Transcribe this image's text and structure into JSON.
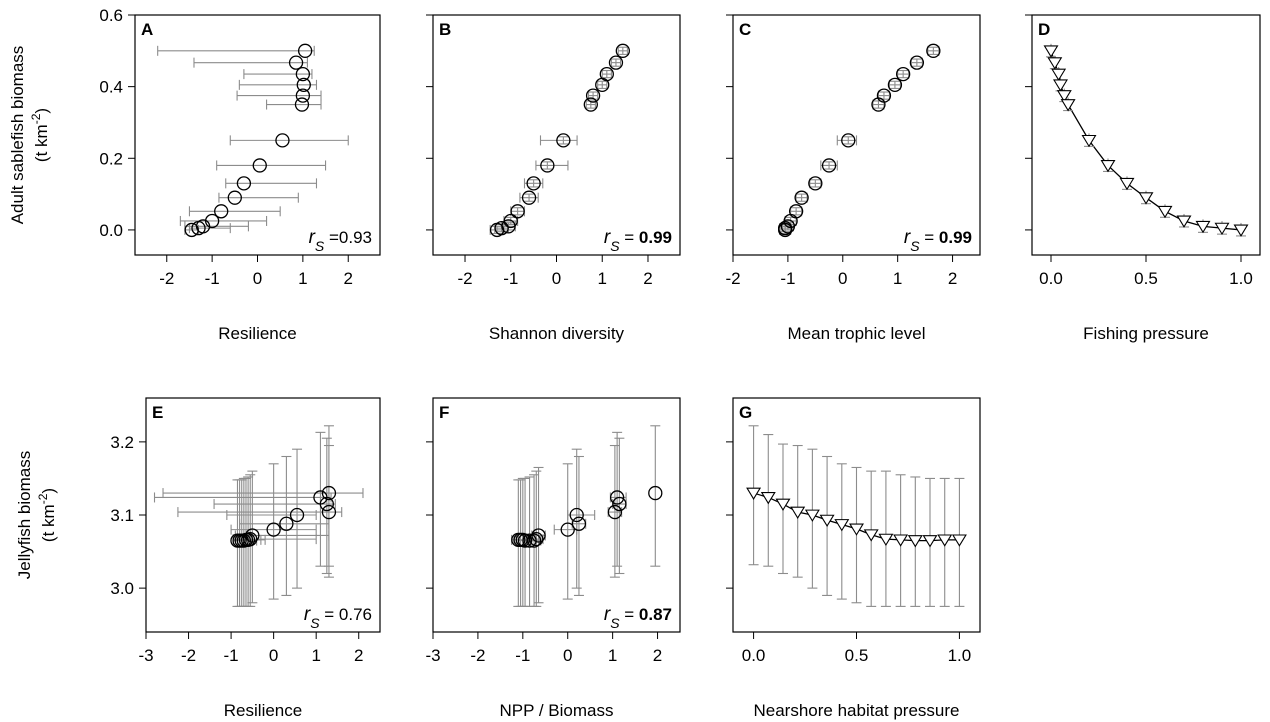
{
  "chart_data": [
    {
      "id": "A",
      "type": "scatter",
      "panel_label": "A",
      "xlabel": "Resilience",
      "ylabel": "Adult sablefish biomass",
      "ylabel_unit": "(t km",
      "xlim": [
        -2.7,
        2.7
      ],
      "ylim": [
        -0.07,
        0.6
      ],
      "xticks": [
        -2,
        -1,
        0,
        1,
        2
      ],
      "xtick_labels": [
        "-2",
        "-1",
        "0",
        "1",
        "2"
      ],
      "yticks": [
        0.0,
        0.2,
        0.4,
        0.6
      ],
      "ytick_labels": [
        "0.0",
        "0.2",
        "0.4",
        "0.6"
      ],
      "marker": "circle",
      "xerr_bars": true,
      "yerr_bars": false,
      "points": [
        {
          "x": 1.05,
          "y": 0.5,
          "xlo": -2.2,
          "xhi": 1.25
        },
        {
          "x": 0.85,
          "y": 0.467,
          "xlo": -1.4,
          "xhi": 1.1
        },
        {
          "x": 1.0,
          "y": 0.435,
          "xlo": -0.3,
          "xhi": 1.2
        },
        {
          "x": 1.02,
          "y": 0.405,
          "xlo": -0.4,
          "xhi": 1.3
        },
        {
          "x": 1.0,
          "y": 0.375,
          "xlo": -0.45,
          "xhi": 1.4
        },
        {
          "x": 0.98,
          "y": 0.35,
          "xlo": 0.2,
          "xhi": 1.4
        },
        {
          "x": 0.55,
          "y": 0.25,
          "xlo": -0.6,
          "xhi": 2.0
        },
        {
          "x": 0.05,
          "y": 0.18,
          "xlo": -0.9,
          "xhi": 1.5
        },
        {
          "x": -0.3,
          "y": 0.13,
          "xlo": -0.7,
          "xhi": 1.3
        },
        {
          "x": -0.5,
          "y": 0.09,
          "xlo": -0.85,
          "xhi": 0.9
        },
        {
          "x": -0.8,
          "y": 0.052,
          "xlo": -1.5,
          "xhi": 0.5
        },
        {
          "x": -1.0,
          "y": 0.025,
          "xlo": -1.7,
          "xhi": 0.2
        },
        {
          "x": -1.2,
          "y": 0.01,
          "xlo": -1.6,
          "xhi": -0.2
        },
        {
          "x": -1.3,
          "y": 0.005,
          "xlo": -1.5,
          "xhi": -0.6
        },
        {
          "x": -1.45,
          "y": 0.0,
          "xlo": -1.6,
          "xhi": -1.3
        }
      ],
      "annotation": {
        "prefix": "r",
        "sub": "S",
        "text": " =0.93",
        "bold": false
      }
    },
    {
      "id": "B",
      "type": "scatter",
      "panel_label": "B",
      "xlabel": "Shannon diversity",
      "xlim": [
        -2.7,
        2.7
      ],
      "ylim": [
        -0.07,
        0.6
      ],
      "xticks": [
        -2,
        -1,
        0,
        1,
        2
      ],
      "xtick_labels": [
        "-2",
        "-1",
        "0",
        "1",
        "2"
      ],
      "marker": "circle",
      "xerr_bars": true,
      "yerr_bars": true,
      "points": [
        {
          "x": 1.45,
          "y": 0.5,
          "xlo": 1.35,
          "xhi": 1.55,
          "ylo": 0.49,
          "yhi": 0.51
        },
        {
          "x": 1.3,
          "y": 0.467,
          "xlo": 1.2,
          "xhi": 1.4,
          "ylo": 0.457,
          "yhi": 0.477
        },
        {
          "x": 1.1,
          "y": 0.435,
          "xlo": 1.0,
          "xhi": 1.2,
          "ylo": 0.425,
          "yhi": 0.445
        },
        {
          "x": 1.0,
          "y": 0.405,
          "xlo": 0.9,
          "xhi": 1.1,
          "ylo": 0.395,
          "yhi": 0.415
        },
        {
          "x": 0.8,
          "y": 0.375,
          "xlo": 0.7,
          "xhi": 0.9,
          "ylo": 0.365,
          "yhi": 0.385
        },
        {
          "x": 0.75,
          "y": 0.35,
          "xlo": 0.65,
          "xhi": 0.85,
          "ylo": 0.34,
          "yhi": 0.36
        },
        {
          "x": 0.15,
          "y": 0.25,
          "xlo": -0.35,
          "xhi": 0.45,
          "ylo": 0.24,
          "yhi": 0.26
        },
        {
          "x": -0.2,
          "y": 0.18,
          "xlo": -0.45,
          "xhi": 0.25,
          "ylo": 0.17,
          "yhi": 0.19
        },
        {
          "x": -0.5,
          "y": 0.13,
          "xlo": -0.7,
          "xhi": -0.3,
          "ylo": 0.12,
          "yhi": 0.14
        },
        {
          "x": -0.6,
          "y": 0.09,
          "xlo": -0.8,
          "xhi": -0.4,
          "ylo": 0.08,
          "yhi": 0.1
        },
        {
          "x": -0.85,
          "y": 0.052,
          "xlo": -1.0,
          "xhi": -0.7,
          "ylo": 0.042,
          "yhi": 0.062
        },
        {
          "x": -1.0,
          "y": 0.025,
          "xlo": -1.15,
          "xhi": -0.85,
          "ylo": 0.015,
          "yhi": 0.035
        },
        {
          "x": -1.05,
          "y": 0.01,
          "xlo": -1.2,
          "xhi": -0.9,
          "ylo": 0.0,
          "yhi": 0.02
        },
        {
          "x": -1.2,
          "y": 0.005,
          "xlo": -1.35,
          "xhi": -1.05,
          "ylo": -0.005,
          "yhi": 0.015
        },
        {
          "x": -1.3,
          "y": 0.0,
          "xlo": -1.45,
          "xhi": -1.15,
          "ylo": -0.01,
          "yhi": 0.01
        }
      ],
      "annotation": {
        "prefix": "r",
        "sub": "S",
        "text": " = ",
        "value": "0.99",
        "bold": true
      }
    },
    {
      "id": "C",
      "type": "scatter",
      "panel_label": "C",
      "xlabel": "Mean trophic level",
      "xlim": [
        -2.0,
        2.5
      ],
      "ylim": [
        -0.07,
        0.6
      ],
      "xticks": [
        -2,
        -1,
        0,
        1,
        2
      ],
      "xtick_labels": [
        "-2",
        "-1",
        "0",
        "1",
        "2"
      ],
      "marker": "circle",
      "xerr_bars": true,
      "yerr_bars": true,
      "points": [
        {
          "x": 1.65,
          "y": 0.5,
          "xlo": 1.55,
          "xhi": 1.75,
          "ylo": 0.49,
          "yhi": 0.51
        },
        {
          "x": 1.35,
          "y": 0.467,
          "xlo": 1.25,
          "xhi": 1.45,
          "ylo": 0.457,
          "yhi": 0.477
        },
        {
          "x": 1.1,
          "y": 0.435,
          "xlo": 1.0,
          "xhi": 1.2,
          "ylo": 0.425,
          "yhi": 0.445
        },
        {
          "x": 0.95,
          "y": 0.405,
          "xlo": 0.85,
          "xhi": 1.05,
          "ylo": 0.395,
          "yhi": 0.415
        },
        {
          "x": 0.75,
          "y": 0.375,
          "xlo": 0.65,
          "xhi": 0.85,
          "ylo": 0.365,
          "yhi": 0.385
        },
        {
          "x": 0.65,
          "y": 0.35,
          "xlo": 0.55,
          "xhi": 0.75,
          "ylo": 0.34,
          "yhi": 0.36
        },
        {
          "x": 0.1,
          "y": 0.25,
          "xlo": -0.1,
          "xhi": 0.25,
          "ylo": 0.24,
          "yhi": 0.26
        },
        {
          "x": -0.25,
          "y": 0.18,
          "xlo": -0.4,
          "xhi": -0.1,
          "ylo": 0.17,
          "yhi": 0.19
        },
        {
          "x": -0.5,
          "y": 0.13,
          "xlo": -0.6,
          "xhi": -0.4,
          "ylo": 0.12,
          "yhi": 0.14
        },
        {
          "x": -0.75,
          "y": 0.09,
          "xlo": -0.85,
          "xhi": -0.65,
          "ylo": 0.08,
          "yhi": 0.1
        },
        {
          "x": -0.85,
          "y": 0.052,
          "xlo": -0.95,
          "xhi": -0.75,
          "ylo": 0.042,
          "yhi": 0.062
        },
        {
          "x": -0.95,
          "y": 0.025,
          "xlo": -1.05,
          "xhi": -0.85,
          "ylo": 0.015,
          "yhi": 0.035
        },
        {
          "x": -1.0,
          "y": 0.01,
          "xlo": -1.1,
          "xhi": -0.9,
          "ylo": 0.0,
          "yhi": 0.02
        },
        {
          "x": -1.05,
          "y": 0.005,
          "xlo": -1.15,
          "xhi": -0.95,
          "ylo": -0.005,
          "yhi": 0.015
        },
        {
          "x": -1.05,
          "y": 0.0,
          "xlo": -1.15,
          "xhi": -0.95,
          "ylo": -0.01,
          "yhi": 0.01
        }
      ],
      "annotation": {
        "prefix": "r",
        "sub": "S",
        "text": " = ",
        "value": "0.99",
        "bold": true
      }
    },
    {
      "id": "D",
      "type": "line",
      "panel_label": "D",
      "xlabel": "Fishing pressure",
      "xlim": [
        -0.1,
        1.1
      ],
      "ylim": [
        -0.07,
        0.6
      ],
      "xticks": [
        0.0,
        0.5,
        1.0
      ],
      "xtick_labels": [
        "0.0",
        "0.5",
        "1.0"
      ],
      "marker": "triangle-down",
      "show_line": true,
      "yerr_bars": true,
      "points": [
        {
          "x": 0.0,
          "y": 0.5
        },
        {
          "x": 0.02,
          "y": 0.467
        },
        {
          "x": 0.04,
          "y": 0.435
        },
        {
          "x": 0.05,
          "y": 0.405
        },
        {
          "x": 0.07,
          "y": 0.375
        },
        {
          "x": 0.09,
          "y": 0.35
        },
        {
          "x": 0.2,
          "y": 0.25
        },
        {
          "x": 0.3,
          "y": 0.18
        },
        {
          "x": 0.4,
          "y": 0.13
        },
        {
          "x": 0.5,
          "y": 0.09
        },
        {
          "x": 0.6,
          "y": 0.052
        },
        {
          "x": 0.7,
          "y": 0.025
        },
        {
          "x": 0.8,
          "y": 0.01
        },
        {
          "x": 0.9,
          "y": 0.005
        },
        {
          "x": 1.0,
          "y": 0.0
        }
      ]
    },
    {
      "id": "E",
      "type": "scatter",
      "panel_label": "E",
      "xlabel": "Resilience",
      "ylabel": "Jellyfish biomass",
      "ylabel_unit": "(t km",
      "xlim": [
        -3.0,
        2.5
      ],
      "ylim": [
        2.94,
        3.26
      ],
      "xticks": [
        -3,
        -2,
        -1,
        0,
        1,
        2
      ],
      "xtick_labels": [
        "-3",
        "-2",
        "-1",
        "0",
        "1",
        "2"
      ],
      "yticks": [
        3.0,
        3.1,
        3.2
      ],
      "ytick_labels": [
        "3.0",
        "3.1",
        "3.2"
      ],
      "marker": "circle",
      "xerr_bars": true,
      "yerr_bars": true,
      "points": [
        {
          "x": 1.3,
          "y": 3.13,
          "xlo": -2.6,
          "xhi": 2.1,
          "ylo": 3.03,
          "yhi": 3.222
        },
        {
          "x": 1.1,
          "y": 3.124,
          "xlo": -2.8,
          "xhi": 1.35,
          "ylo": 3.03,
          "yhi": 3.213
        },
        {
          "x": 1.25,
          "y": 3.115,
          "xlo": -1.4,
          "xhi": 1.45,
          "ylo": 3.02,
          "yhi": 3.205
        },
        {
          "x": 1.3,
          "y": 3.104,
          "xlo": -2.25,
          "xhi": 1.6,
          "ylo": 3.015,
          "yhi": 3.195
        },
        {
          "x": 0.55,
          "y": 3.1,
          "xlo": -1.1,
          "xhi": 1.0,
          "ylo": 3.0,
          "yhi": 3.19
        },
        {
          "x": 0.3,
          "y": 3.088,
          "xlo": -0.8,
          "xhi": 1.3,
          "ylo": 2.99,
          "yhi": 3.18
        },
        {
          "x": 0.0,
          "y": 3.08,
          "xlo": -1.0,
          "xhi": 1.0,
          "ylo": 2.985,
          "yhi": 3.17
        },
        {
          "x": -0.5,
          "y": 3.072,
          "xlo": -0.9,
          "xhi": 1.3,
          "ylo": 2.98,
          "yhi": 3.16
        },
        {
          "x": -0.55,
          "y": 3.067,
          "xlo": -0.95,
          "xhi": 1.0,
          "ylo": 2.975,
          "yhi": 3.155
        },
        {
          "x": -0.6,
          "y": 3.066,
          "xlo": -0.95,
          "xhi": -0.2,
          "ylo": 2.975,
          "yhi": 3.152
        },
        {
          "x": -0.65,
          "y": 3.066,
          "xlo": -0.95,
          "xhi": -0.3,
          "ylo": 2.975,
          "yhi": 3.15
        },
        {
          "x": -0.7,
          "y": 3.065,
          "xlo": -0.95,
          "xhi": -0.4,
          "ylo": 2.975,
          "yhi": 3.15
        },
        {
          "x": -0.75,
          "y": 3.065,
          "xlo": -0.95,
          "xhi": -0.5,
          "ylo": 2.975,
          "yhi": 3.148
        },
        {
          "x": -0.8,
          "y": 3.065,
          "xlo": -0.95,
          "xhi": -0.6,
          "ylo": 2.975,
          "yhi": 3.148
        },
        {
          "x": -0.85,
          "y": 3.065,
          "xlo": -0.95,
          "xhi": -0.7,
          "ylo": 2.975,
          "yhi": 3.148
        }
      ],
      "annotation": {
        "prefix": "r",
        "sub": "S",
        "text": " = 0.76",
        "bold": false
      }
    },
    {
      "id": "F",
      "type": "scatter",
      "panel_label": "F",
      "xlabel": "NPP / Biomass",
      "xlim": [
        -3.0,
        2.5
      ],
      "ylim": [
        2.94,
        3.26
      ],
      "xticks": [
        -3,
        -2,
        -1,
        0,
        1,
        2
      ],
      "xtick_labels": [
        "-3",
        "-2",
        "-1",
        "0",
        "1",
        "2"
      ],
      "marker": "circle",
      "xerr_bars": true,
      "yerr_bars": true,
      "points": [
        {
          "x": 1.95,
          "y": 3.13,
          "ylo": 3.03,
          "yhi": 3.222,
          "xlo": 1.95,
          "xhi": 1.95
        },
        {
          "x": 1.1,
          "y": 3.124,
          "ylo": 3.03,
          "yhi": 3.213,
          "xlo": 0.95,
          "xhi": 1.3
        },
        {
          "x": 1.15,
          "y": 3.115,
          "ylo": 3.02,
          "yhi": 3.205,
          "xlo": 1.0,
          "xhi": 1.3
        },
        {
          "x": 1.05,
          "y": 3.104,
          "ylo": 3.015,
          "yhi": 3.195,
          "xlo": 0.9,
          "xhi": 1.2
        },
        {
          "x": 0.2,
          "y": 3.1,
          "ylo": 3.0,
          "yhi": 3.19,
          "xlo": 0.0,
          "xhi": 0.6
        },
        {
          "x": 0.25,
          "y": 3.088,
          "ylo": 2.99,
          "yhi": 3.18,
          "xlo": 0.1,
          "xhi": 0.4
        },
        {
          "x": 0.0,
          "y": 3.08,
          "ylo": 2.985,
          "yhi": 3.17,
          "xlo": -0.3,
          "xhi": 0.2
        },
        {
          "x": -0.65,
          "y": 3.072,
          "ylo": 2.98,
          "yhi": 3.165,
          "xlo": -0.8,
          "xhi": -0.5
        },
        {
          "x": -0.7,
          "y": 3.067,
          "ylo": 2.975,
          "yhi": 3.16,
          "xlo": -0.85,
          "xhi": -0.55
        },
        {
          "x": -0.75,
          "y": 3.065,
          "ylo": 2.975,
          "yhi": 3.155,
          "xlo": -0.9,
          "xhi": -0.6
        },
        {
          "x": -0.85,
          "y": 3.065,
          "ylo": 2.975,
          "yhi": 3.152,
          "xlo": -1.0,
          "xhi": -0.7
        },
        {
          "x": -0.95,
          "y": 3.065,
          "ylo": 2.975,
          "yhi": 3.15,
          "xlo": -1.1,
          "xhi": -0.8
        },
        {
          "x": -1.0,
          "y": 3.066,
          "ylo": 2.975,
          "yhi": 3.15,
          "xlo": -1.15,
          "xhi": -0.85
        },
        {
          "x": -1.05,
          "y": 3.066,
          "ylo": 2.975,
          "yhi": 3.148,
          "xlo": -1.2,
          "xhi": -0.9
        },
        {
          "x": -1.1,
          "y": 3.066,
          "ylo": 2.975,
          "yhi": 3.148,
          "xlo": -1.25,
          "xhi": -0.95
        }
      ],
      "annotation": {
        "prefix": "r",
        "sub": "S",
        "text": " = ",
        "value": "0.87",
        "bold": true
      }
    },
    {
      "id": "G",
      "type": "line",
      "panel_label": "G",
      "xlabel": "Nearshore habitat pressure",
      "xlim": [
        -0.1,
        1.1
      ],
      "ylim": [
        2.94,
        3.26
      ],
      "xticks": [
        0.0,
        0.5,
        1.0
      ],
      "xtick_labels": [
        "0.0",
        "0.5",
        "1.0"
      ],
      "marker": "triangle-down",
      "show_line": true,
      "yerr_bars": true,
      "points": [
        {
          "x": 0.0,
          "y": 3.13,
          "ylo": 3.032,
          "yhi": 3.222
        },
        {
          "x": 0.0714,
          "y": 3.124,
          "ylo": 3.03,
          "yhi": 3.21
        },
        {
          "x": 0.1429,
          "y": 3.115,
          "ylo": 3.02,
          "yhi": 3.197
        },
        {
          "x": 0.2143,
          "y": 3.104,
          "ylo": 3.015,
          "yhi": 3.195
        },
        {
          "x": 0.2857,
          "y": 3.1,
          "ylo": 3.0,
          "yhi": 3.19
        },
        {
          "x": 0.3571,
          "y": 3.093,
          "ylo": 2.99,
          "yhi": 3.18
        },
        {
          "x": 0.4286,
          "y": 3.087,
          "ylo": 2.985,
          "yhi": 3.17
        },
        {
          "x": 0.5,
          "y": 3.081,
          "ylo": 2.98,
          "yhi": 3.165
        },
        {
          "x": 0.5714,
          "y": 3.073,
          "ylo": 2.975,
          "yhi": 3.16
        },
        {
          "x": 0.6429,
          "y": 3.067,
          "ylo": 2.975,
          "yhi": 3.16
        },
        {
          "x": 0.7143,
          "y": 3.066,
          "ylo": 2.975,
          "yhi": 3.155
        },
        {
          "x": 0.7857,
          "y": 3.065,
          "ylo": 2.975,
          "yhi": 3.152
        },
        {
          "x": 0.8571,
          "y": 3.065,
          "ylo": 2.975,
          "yhi": 3.15
        },
        {
          "x": 0.9286,
          "y": 3.066,
          "ylo": 2.975,
          "yhi": 3.15
        },
        {
          "x": 1.0,
          "y": 3.066,
          "ylo": 2.975,
          "yhi": 3.15
        }
      ]
    }
  ]
}
